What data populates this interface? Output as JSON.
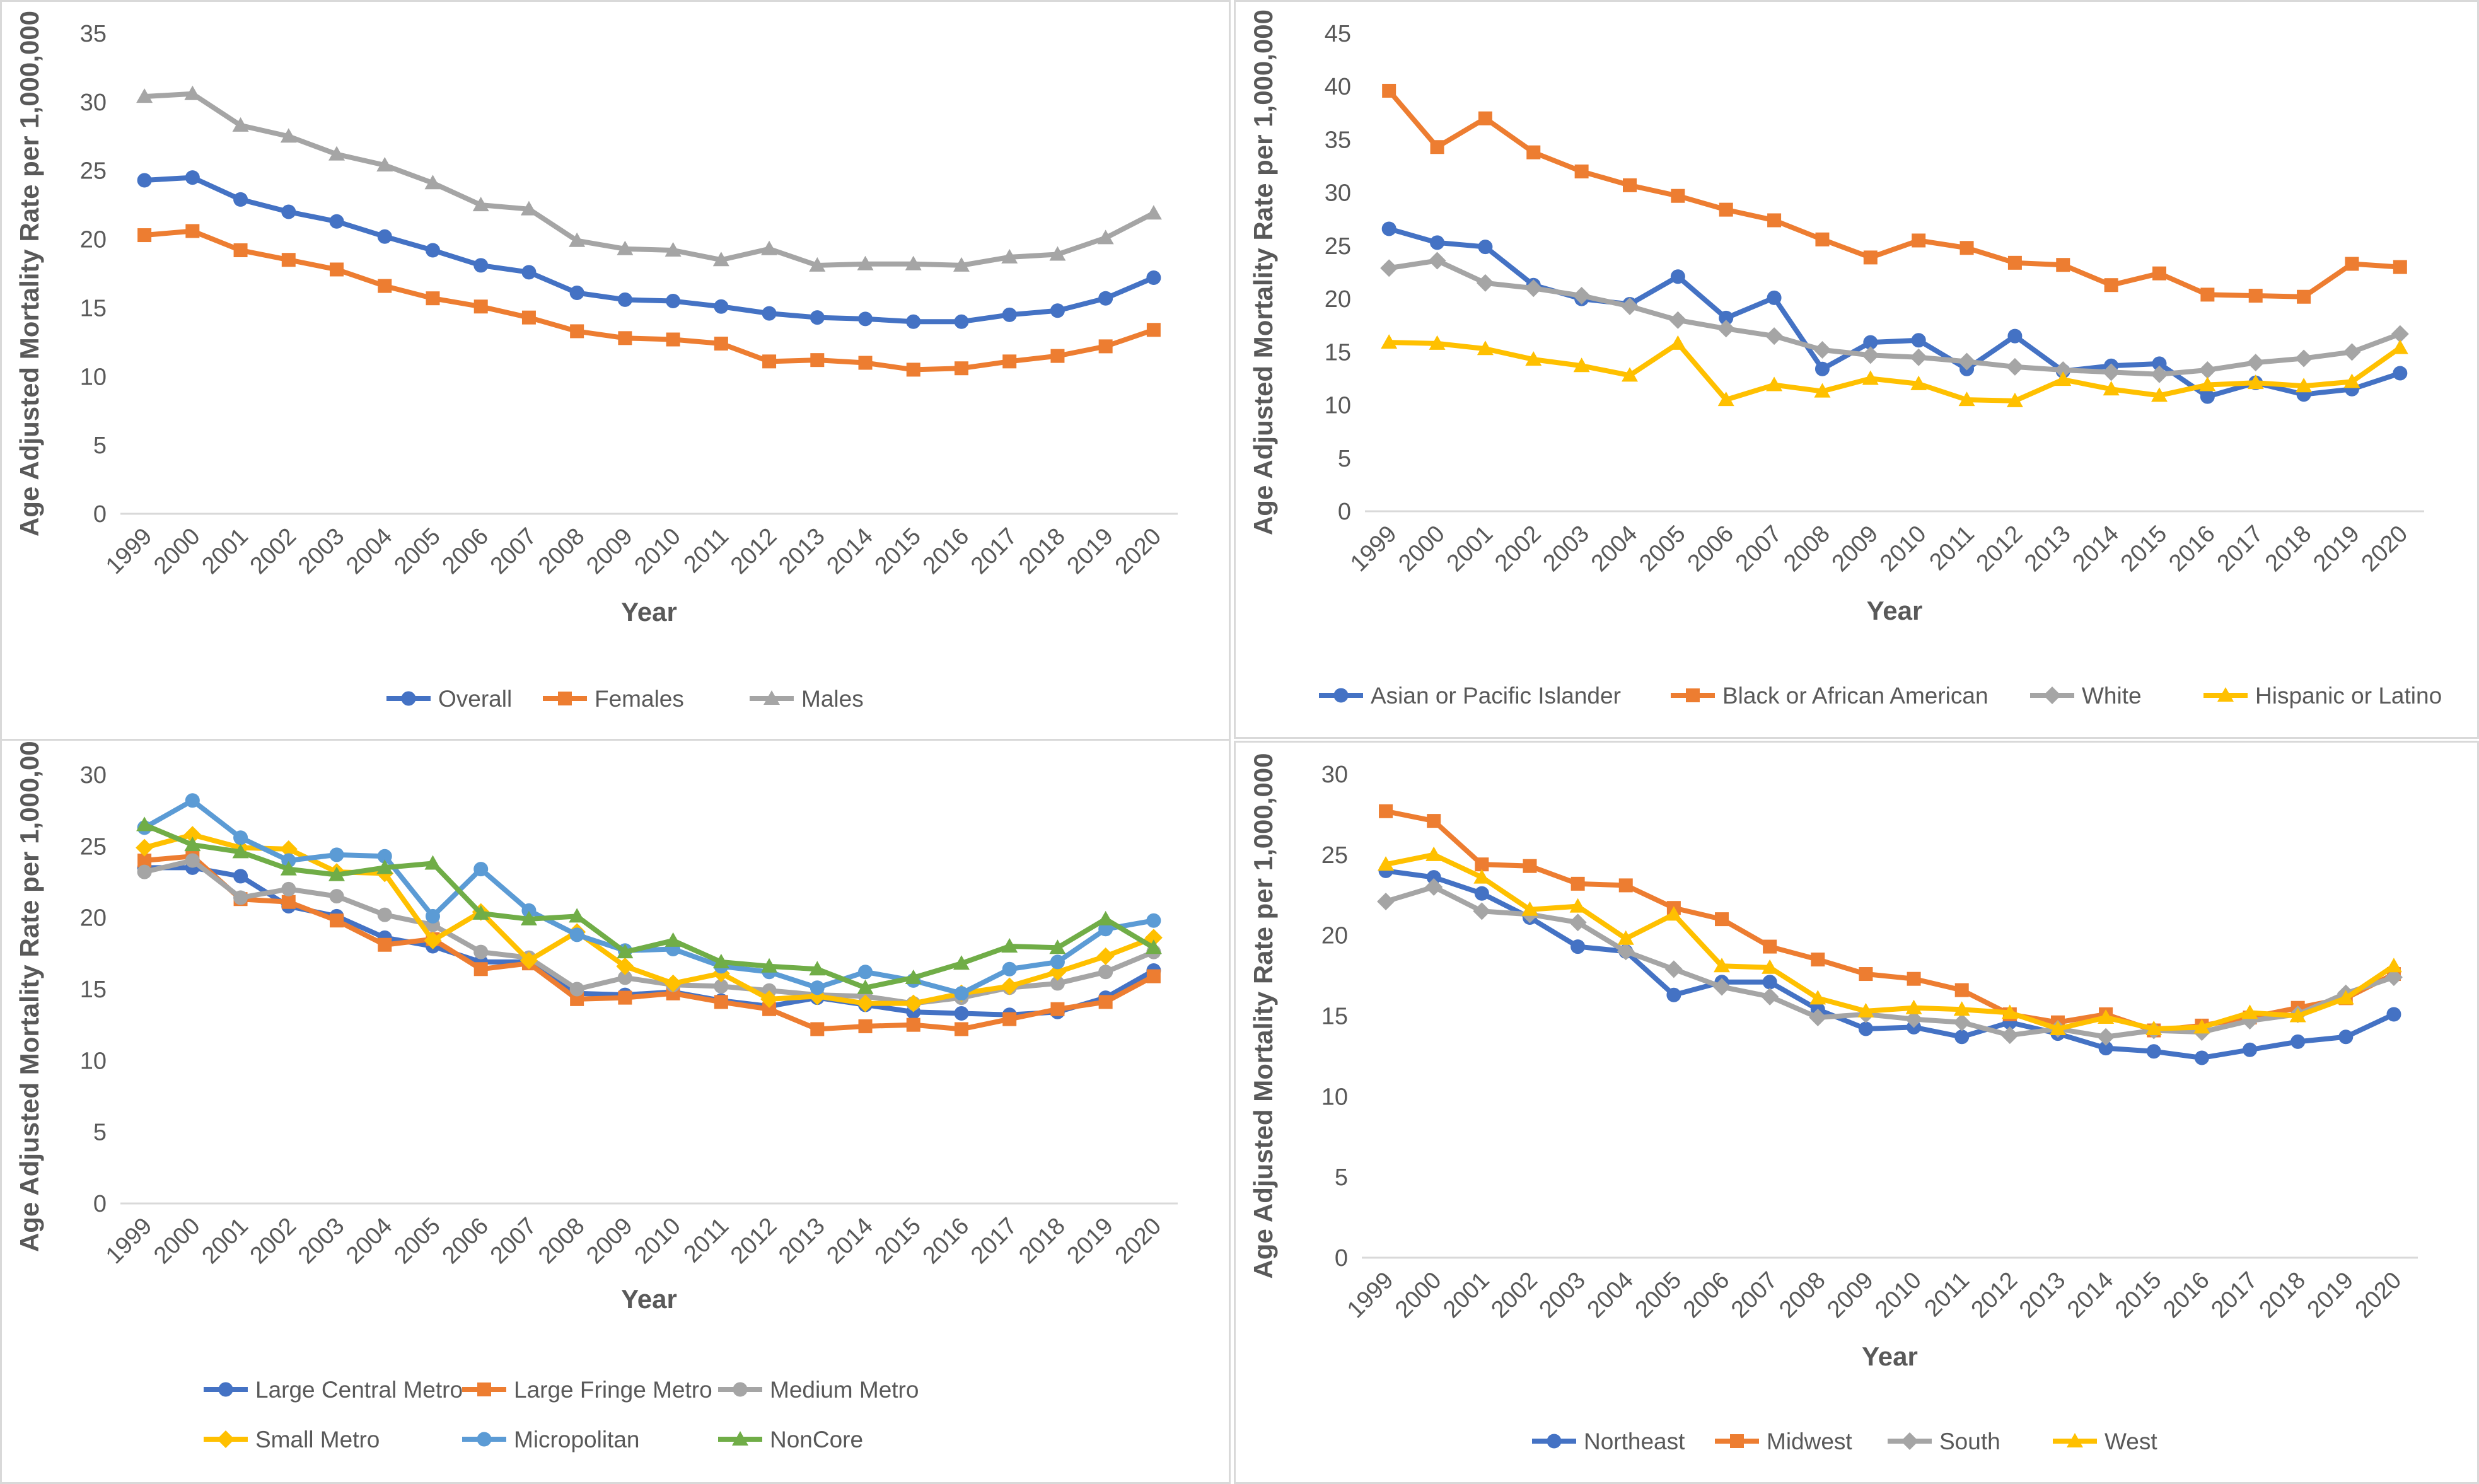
{
  "chart_data": [
    {
      "type": "line",
      "title": "",
      "xlabel": "Year",
      "ylabel": "Age Adjusted Mortality Rate per 1,000,000",
      "ylim": [
        0,
        35
      ],
      "yticks": [
        "0",
        "5",
        "10",
        "15",
        "20",
        "25",
        "30",
        "35"
      ],
      "categories": [
        "1999",
        "2000",
        "2001",
        "2002",
        "2003",
        "2004",
        "2005",
        "2006",
        "2007",
        "2008",
        "2009",
        "2010",
        "2011",
        "2012",
        "2013",
        "2014",
        "2015",
        "2016",
        "2017",
        "2018",
        "2019",
        "2020"
      ],
      "legend_position": "bottom",
      "series": [
        {
          "name": "Overall",
          "color": "#4472C4",
          "marker": "circle",
          "values": [
            24.3,
            24.5,
            22.9,
            22.0,
            21.3,
            20.2,
            19.2,
            18.1,
            17.6,
            16.1,
            15.6,
            15.5,
            15.1,
            14.6,
            14.3,
            14.2,
            14.0,
            14.0,
            14.5,
            14.8,
            15.7,
            17.2
          ]
        },
        {
          "name": "Females",
          "color": "#ED7D31",
          "marker": "square",
          "values": [
            20.3,
            20.6,
            19.2,
            18.5,
            17.8,
            16.6,
            15.7,
            15.1,
            14.3,
            13.3,
            12.8,
            12.7,
            12.4,
            11.1,
            11.2,
            11.0,
            10.5,
            10.6,
            11.1,
            11.5,
            12.2,
            13.4
          ]
        },
        {
          "name": "Males",
          "color": "#A5A5A5",
          "marker": "triangle",
          "values": [
            30.4,
            30.6,
            28.3,
            27.5,
            26.2,
            25.4,
            24.1,
            22.5,
            22.2,
            19.9,
            19.3,
            19.2,
            18.5,
            19.3,
            18.1,
            18.2,
            18.2,
            18.1,
            18.7,
            18.9,
            20.1,
            21.9
          ]
        }
      ]
    },
    {
      "type": "line",
      "title": "",
      "xlabel": "Year",
      "ylabel": "Age Adjusted Mortality Rate per 1,000,000",
      "ylim": [
        0,
        45
      ],
      "yticks": [
        "0",
        "5",
        "10",
        "15",
        "20",
        "25",
        "30",
        "35",
        "40",
        "45"
      ],
      "categories": [
        "1999",
        "2000",
        "2001",
        "2002",
        "2003",
        "2004",
        "2005",
        "2006",
        "2007",
        "2008",
        "2009",
        "2010",
        "2011",
        "2012",
        "2013",
        "2014",
        "2015",
        "2016",
        "2017",
        "2018",
        "2019",
        "2020"
      ],
      "legend_position": "bottom",
      "series": [
        {
          "name": "Asian or Pacific Islander",
          "color": "#4472C4",
          "marker": "circle",
          "values": [
            26.6,
            25.3,
            24.9,
            21.3,
            20.0,
            19.5,
            22.1,
            18.2,
            20.1,
            13.4,
            15.9,
            16.1,
            13.4,
            16.5,
            13.2,
            13.7,
            13.9,
            10.8,
            12.1,
            11.0,
            11.5,
            13.0
          ]
        },
        {
          "name": "Black or African American",
          "color": "#ED7D31",
          "marker": "square",
          "values": [
            39.6,
            34.3,
            37.0,
            33.8,
            32.0,
            30.7,
            29.7,
            28.4,
            27.4,
            25.6,
            23.9,
            25.5,
            24.8,
            23.4,
            23.2,
            21.3,
            22.4,
            20.4,
            20.3,
            20.2,
            23.3,
            23.0
          ]
        },
        {
          "name": "White",
          "color": "#A5A5A5",
          "marker": "diamond",
          "values": [
            22.9,
            23.6,
            21.5,
            21.0,
            20.3,
            19.3,
            18.0,
            17.2,
            16.5,
            15.2,
            14.7,
            14.5,
            14.1,
            13.6,
            13.3,
            13.1,
            12.9,
            13.3,
            14.0,
            14.4,
            15.0,
            16.7
          ]
        },
        {
          "name": "Hispanic or Latino",
          "color": "#FFC000",
          "marker": "triangle",
          "values": [
            15.9,
            15.8,
            15.3,
            14.3,
            13.7,
            12.8,
            15.8,
            10.5,
            11.9,
            11.3,
            12.5,
            12.0,
            10.5,
            10.4,
            12.4,
            11.5,
            10.9,
            11.9,
            12.1,
            11.8,
            12.2,
            15.4
          ]
        }
      ]
    },
    {
      "type": "line",
      "title": "",
      "xlabel": "Year",
      "ylabel": "Age Adjusted Mortality Rate per 1,000,000",
      "ylim": [
        0,
        30
      ],
      "yticks": [
        "0",
        "5",
        "10",
        "15",
        "20",
        "25",
        "30"
      ],
      "categories": [
        "1999",
        "2000",
        "2001",
        "2002",
        "2003",
        "2004",
        "2005",
        "2006",
        "2007",
        "2008",
        "2009",
        "2010",
        "2011",
        "2012",
        "2013",
        "2014",
        "2015",
        "2016",
        "2017",
        "2018",
        "2019",
        "2020"
      ],
      "legend_position": "bottom",
      "series": [
        {
          "name": "Large Central Metro",
          "color": "#4472C4",
          "marker": "circle",
          "values": [
            23.5,
            23.5,
            22.9,
            20.8,
            20.1,
            18.6,
            18.0,
            16.9,
            16.9,
            14.7,
            14.6,
            14.8,
            14.2,
            13.8,
            14.4,
            13.9,
            13.4,
            13.3,
            13.2,
            13.4,
            14.4,
            16.3
          ]
        },
        {
          "name": "Large Fringe Metro",
          "color": "#ED7D31",
          "marker": "square",
          "values": [
            24.0,
            24.3,
            21.3,
            21.1,
            19.8,
            18.1,
            18.5,
            16.4,
            16.8,
            14.3,
            14.4,
            14.7,
            14.1,
            13.6,
            12.2,
            12.4,
            12.5,
            12.2,
            12.9,
            13.6,
            14.1,
            15.9
          ]
        },
        {
          "name": "Medium Metro",
          "color": "#A5A5A5",
          "marker": "circle",
          "values": [
            23.2,
            24.0,
            21.4,
            22.0,
            21.5,
            20.2,
            19.5,
            17.6,
            17.2,
            15.0,
            15.8,
            15.3,
            15.2,
            14.9,
            14.6,
            14.5,
            14.0,
            14.4,
            15.1,
            15.4,
            16.2,
            17.6
          ]
        },
        {
          "name": "Small Metro",
          "color": "#FFC000",
          "marker": "diamond",
          "values": [
            24.9,
            25.8,
            24.9,
            24.8,
            23.2,
            23.1,
            18.4,
            20.4,
            17.0,
            19.0,
            16.6,
            15.4,
            16.1,
            14.3,
            14.5,
            14.0,
            14.0,
            14.7,
            15.2,
            16.2,
            17.3,
            18.6
          ]
        },
        {
          "name": "Micropolitan",
          "color": "#5B9BD5",
          "marker": "circle",
          "values": [
            26.3,
            28.2,
            25.6,
            24.0,
            24.4,
            24.3,
            20.1,
            23.4,
            20.5,
            18.8,
            17.7,
            17.8,
            16.6,
            16.2,
            15.1,
            16.2,
            15.6,
            14.7,
            16.4,
            16.9,
            19.2,
            19.8
          ]
        },
        {
          "name": "NonCore",
          "color": "#70AD47",
          "marker": "triangle",
          "values": [
            26.5,
            25.1,
            24.6,
            23.4,
            23.0,
            23.5,
            23.8,
            20.3,
            19.9,
            20.1,
            17.6,
            18.4,
            16.9,
            16.6,
            16.4,
            15.1,
            15.8,
            16.8,
            18.0,
            17.9,
            19.9,
            17.9
          ]
        }
      ]
    },
    {
      "type": "line",
      "title": "",
      "xlabel": "Year",
      "ylabel": "Age Adjusted Mortality Rate per 1,000,000",
      "ylim": [
        0,
        30
      ],
      "yticks": [
        "0",
        "5",
        "10",
        "15",
        "20",
        "25",
        "30"
      ],
      "categories": [
        "1999",
        "2000",
        "2001",
        "2002",
        "2003",
        "2004",
        "2005",
        "2006",
        "2007",
        "2008",
        "2009",
        "2010",
        "2011",
        "2012",
        "2013",
        "2014",
        "2015",
        "2016",
        "2017",
        "2018",
        "2019",
        "2020"
      ],
      "legend_position": "bottom",
      "series": [
        {
          "name": "Northeast",
          "color": "#4472C4",
          "marker": "circle",
          "values": [
            24.0,
            23.6,
            22.6,
            21.1,
            19.3,
            19.0,
            16.3,
            17.1,
            17.1,
            15.4,
            14.2,
            14.3,
            13.7,
            14.6,
            13.9,
            13.0,
            12.8,
            12.4,
            12.9,
            13.4,
            13.7,
            15.1
          ]
        },
        {
          "name": "Midwest",
          "color": "#ED7D31",
          "marker": "square",
          "values": [
            27.7,
            27.1,
            24.4,
            24.3,
            23.2,
            23.1,
            21.7,
            21.0,
            19.3,
            18.5,
            17.6,
            17.3,
            16.6,
            15.1,
            14.6,
            15.1,
            14.1,
            14.4,
            14.9,
            15.5,
            16.1,
            17.6
          ]
        },
        {
          "name": "South",
          "color": "#A5A5A5",
          "marker": "diamond",
          "values": [
            22.1,
            23.0,
            21.5,
            21.3,
            20.8,
            19.0,
            17.9,
            16.8,
            16.2,
            14.9,
            15.1,
            14.8,
            14.6,
            13.8,
            14.2,
            13.7,
            14.1,
            14.0,
            14.7,
            15.1,
            16.4,
            17.4
          ]
        },
        {
          "name": "West",
          "color": "#FFC000",
          "marker": "triangle",
          "values": [
            24.4,
            25.0,
            23.6,
            21.6,
            21.8,
            19.8,
            21.3,
            18.1,
            18.0,
            16.1,
            15.3,
            15.5,
            15.4,
            15.2,
            14.2,
            14.9,
            14.2,
            14.3,
            15.2,
            15.0,
            16.1,
            18.1
          ]
        }
      ]
    }
  ]
}
